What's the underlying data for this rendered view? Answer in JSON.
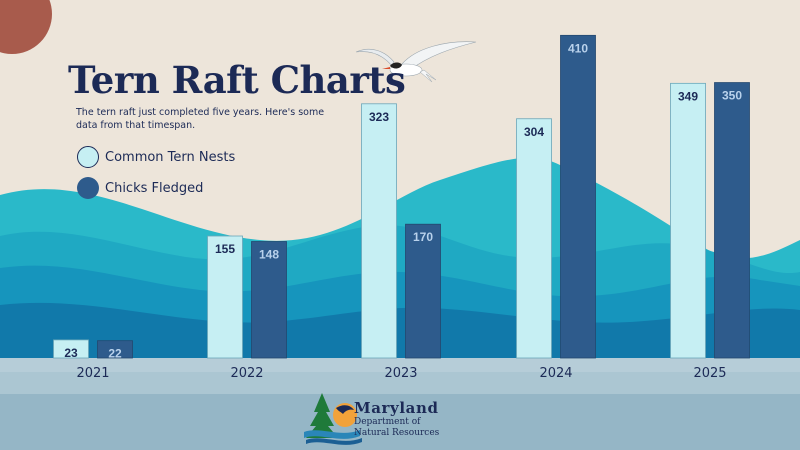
{
  "header": {
    "title": "Tern Raft Charts",
    "subtitle": "The tern raft just completed five years. Here's some data from that timespan."
  },
  "colors": {
    "background": "#ede5da",
    "nests": "#c6eff3",
    "fledged": "#2e5b8c",
    "title": "#1c2a56",
    "axis_band": "#b6cdd8",
    "footer": "#95b6c6"
  },
  "chart_data": {
    "type": "bar",
    "categories": [
      "2021",
      "2022",
      "2023",
      "2024",
      "2025"
    ],
    "series": [
      {
        "name": "Common Tern Nests",
        "values": [
          23,
          155,
          323,
          304,
          349
        ]
      },
      {
        "name": "Chicks Fledged",
        "values": [
          22,
          148,
          170,
          410,
          350
        ]
      }
    ],
    "ylim": [
      0,
      420
    ],
    "grid": false,
    "legend_position": "top-left"
  },
  "logo": {
    "name": "Maryland",
    "line1": "Department of",
    "line2": "Natural Resources"
  }
}
